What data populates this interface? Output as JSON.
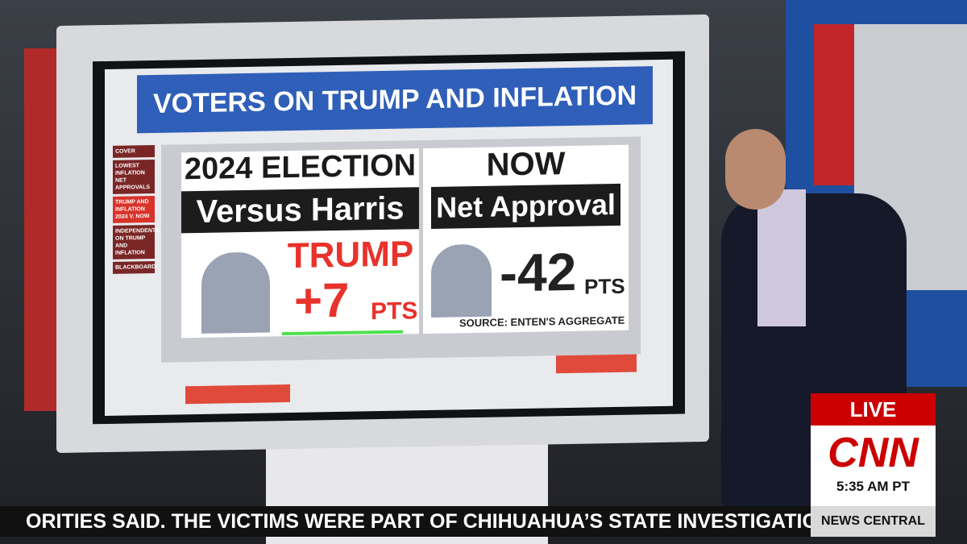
{
  "screen": {
    "title": "VOTERS ON TRUMP AND INFLATION",
    "menu_left": [
      "COVER",
      "LOWEST INFLATION NET APPROVALS",
      "TRUMP AND INFLATION 2024 V. NOW",
      "INDEPENDENTS ON TRUMP AND INFLATION",
      "BLACKBOARD"
    ],
    "left_panel": {
      "heading": "2024 ELECTION",
      "subheading": "Versus Harris",
      "name": "TRUMP",
      "value": "+7",
      "unit": "PTS"
    },
    "right_panel": {
      "heading": "NOW",
      "subheading": "Net Approval",
      "value": "-42",
      "unit": "PTS",
      "source": "SOURCE: ENTEN'S AGGREGATE"
    }
  },
  "broadcast": {
    "ticker": "ORITIES SAID. THE VICTIMS WERE PART OF CHIHUAHUA’S STATE INVESTIGATION AGENC",
    "live": "LIVE",
    "network": "CNN",
    "time": "5:35 AM PT",
    "show": "NEWS CENTRAL"
  }
}
